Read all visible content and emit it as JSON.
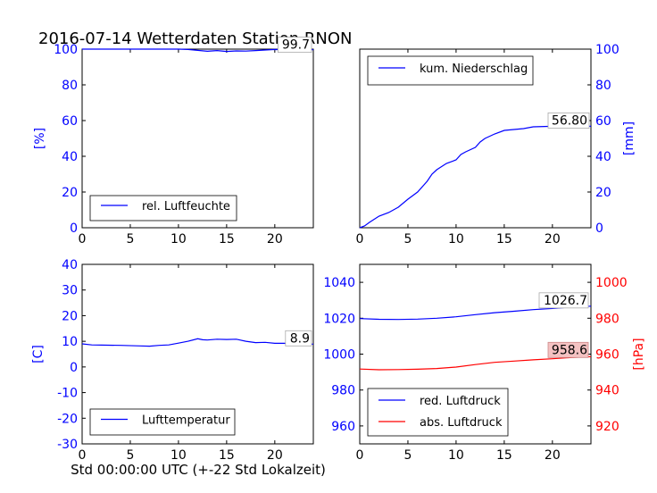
{
  "title": "2016-07-14 Wetterdaten Station RNON",
  "footer_xlabel": "Std 00:00:00 UTC (+-22 Std Lokalzeit)",
  "colors": {
    "blue": "#0000ff",
    "red": "#ff0000",
    "black": "#000000"
  },
  "chart_data": [
    {
      "type": "line",
      "panel": "top-left",
      "ylabel": "[%]",
      "xlim": [
        0,
        24
      ],
      "ylim": [
        0,
        100
      ],
      "xticks": [
        0,
        5,
        10,
        15,
        20
      ],
      "yticks": [
        0,
        20,
        40,
        60,
        80,
        100
      ],
      "legend_position": "lower-left",
      "end_value_label": "99.7",
      "series": [
        {
          "name": "rel. Luftfeuchte",
          "color": "#0000ff",
          "x": [
            0,
            2,
            4,
            6,
            8,
            10,
            11,
            12,
            13,
            14,
            15,
            16,
            17,
            18,
            19,
            20,
            21,
            22,
            23,
            24
          ],
          "y": [
            100,
            100,
            100,
            100,
            100,
            100,
            99.8,
            99.3,
            98.8,
            99.2,
            98.7,
            99,
            98.9,
            99.2,
            99.5,
            99.8,
            99.7,
            99.7,
            99.7,
            99.7
          ]
        }
      ]
    },
    {
      "type": "line",
      "panel": "top-right",
      "ylabel": "[mm]",
      "xlim": [
        0,
        24
      ],
      "ylim": [
        0,
        100
      ],
      "xticks": [
        0,
        5,
        10,
        15,
        20
      ],
      "yticks": [
        0,
        20,
        40,
        60,
        80,
        100
      ],
      "legend_position": "upper-left",
      "end_value_label": "56.80",
      "series": [
        {
          "name": "kum. Niederschlag",
          "color": "#0000ff",
          "x": [
            0,
            0.5,
            1,
            2,
            3,
            4,
            5,
            6,
            7,
            7.5,
            8,
            9,
            10,
            10.5,
            11,
            12,
            12.5,
            13,
            14,
            15,
            16,
            17,
            18,
            20,
            22,
            24
          ],
          "y": [
            0,
            1,
            3,
            6.5,
            8.5,
            11.5,
            16,
            20,
            26,
            30,
            32.5,
            36,
            38,
            41,
            42.5,
            45,
            48,
            50,
            52.5,
            54.5,
            55,
            55.5,
            56.5,
            56.8,
            56.8,
            56.8
          ]
        }
      ]
    },
    {
      "type": "line",
      "panel": "bottom-left",
      "ylabel": "[C]",
      "xlim": [
        0,
        24
      ],
      "ylim": [
        -30,
        40
      ],
      "xticks": [
        0,
        5,
        10,
        15,
        20
      ],
      "yticks": [
        -30,
        -20,
        -10,
        0,
        10,
        20,
        30,
        40
      ],
      "legend_position": "lower-left",
      "end_value_label": "8.9",
      "series": [
        {
          "name": "Lufttemperatur",
          "color": "#0000ff",
          "x": [
            0,
            1,
            2,
            4,
            6,
            7,
            8,
            9,
            10,
            11,
            12,
            12.5,
            13,
            14,
            15,
            16,
            17,
            18,
            19,
            20,
            21,
            22,
            23,
            24
          ],
          "y": [
            9,
            8.6,
            8.5,
            8.4,
            8.2,
            8.1,
            8.4,
            8.6,
            9.3,
            10,
            11,
            10.6,
            10.5,
            10.8,
            10.7,
            10.8,
            10,
            9.5,
            9.6,
            9.2,
            9.2,
            9,
            8.9,
            8.9
          ]
        }
      ]
    },
    {
      "type": "line",
      "panel": "bottom-right",
      "ylabel": "[hPa]",
      "xlim": [
        0,
        24
      ],
      "ylim_left": [
        950,
        1050
      ],
      "ylim_right": [
        910,
        1010
      ],
      "xticks": [
        0,
        5,
        10,
        15,
        20
      ],
      "yticks_left": [
        960,
        980,
        1000,
        1020,
        1040
      ],
      "yticks_right": [
        920,
        940,
        960,
        980,
        1000
      ],
      "legend_position": "lower-left",
      "end_value_labels": [
        "1026.7",
        "958.6"
      ],
      "series": [
        {
          "name": "red. Luftdruck",
          "color": "#0000ff",
          "axis": "left",
          "x": [
            0,
            2,
            4,
            6,
            8,
            10,
            12,
            14,
            16,
            18,
            20,
            22,
            24
          ],
          "y": [
            1019.8,
            1019.4,
            1019.3,
            1019.5,
            1020,
            1020.8,
            1022,
            1023.1,
            1023.9,
            1024.8,
            1025.4,
            1026.2,
            1026.7
          ]
        },
        {
          "name": "abs. Luftdruck",
          "color": "#ff0000",
          "axis": "right",
          "x": [
            0,
            2,
            4,
            6,
            8,
            10,
            12,
            14,
            16,
            18,
            20,
            22,
            24
          ],
          "y": [
            951.7,
            951.3,
            951.4,
            951.6,
            952,
            952.8,
            954.2,
            955.4,
            956.1,
            956.8,
            957.4,
            958.1,
            958.6
          ]
        }
      ]
    }
  ]
}
